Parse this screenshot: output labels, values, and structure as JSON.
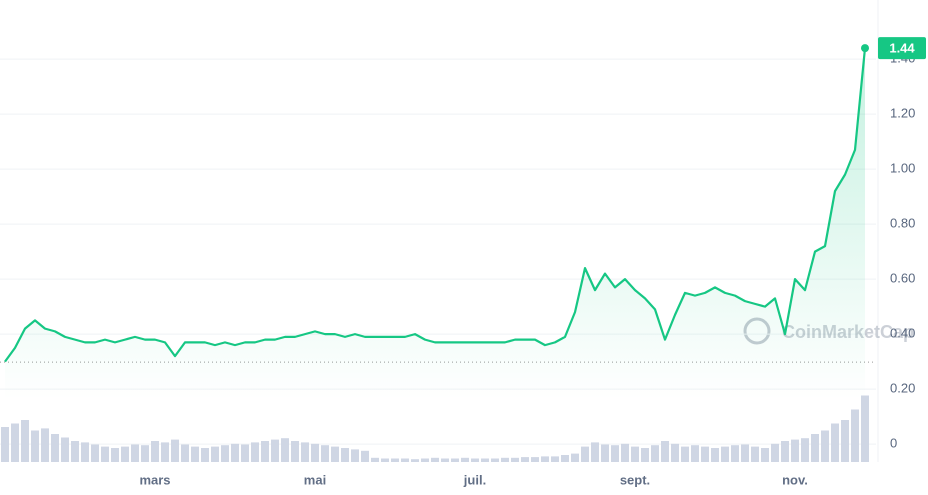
{
  "chart_data": {
    "type": "line",
    "categories": [
      null,
      null,
      null,
      null,
      null,
      null,
      null,
      null,
      null,
      null,
      null,
      null,
      null,
      null,
      null,
      "mars",
      null,
      null,
      null,
      null,
      null,
      null,
      null,
      null,
      null,
      null,
      null,
      null,
      null,
      null,
      null,
      "mai",
      null,
      null,
      null,
      null,
      null,
      null,
      null,
      null,
      null,
      null,
      null,
      null,
      null,
      null,
      null,
      "juil.",
      null,
      null,
      null,
      null,
      null,
      null,
      null,
      null,
      null,
      null,
      null,
      null,
      null,
      null,
      null,
      "sept.",
      null,
      null,
      null,
      null,
      null,
      null,
      null,
      null,
      null,
      null,
      null,
      null,
      null,
      null,
      null,
      "nov.",
      null,
      null,
      null,
      null,
      null,
      null,
      null
    ],
    "series": [
      {
        "color": "#16c784",
        "values": [
          0.3,
          0.35,
          0.42,
          0.45,
          0.42,
          0.41,
          0.39,
          0.38,
          0.37,
          0.37,
          0.38,
          0.37,
          0.38,
          0.39,
          0.38,
          0.38,
          0.37,
          0.32,
          0.37,
          0.37,
          0.37,
          0.36,
          0.37,
          0.36,
          0.37,
          0.37,
          0.38,
          0.38,
          0.39,
          0.39,
          0.4,
          0.41,
          0.4,
          0.4,
          0.39,
          0.4,
          0.39,
          0.39,
          0.39,
          0.39,
          0.39,
          0.4,
          0.38,
          0.37,
          0.37,
          0.37,
          0.37,
          0.37,
          0.37,
          0.37,
          0.37,
          0.38,
          0.38,
          0.38,
          0.36,
          0.37,
          0.39,
          0.48,
          0.64,
          0.56,
          0.62,
          0.57,
          0.6,
          0.56,
          0.53,
          0.49,
          0.38,
          0.47,
          0.55,
          0.54,
          0.55,
          0.57,
          0.55,
          0.54,
          0.52,
          0.51,
          0.5,
          0.53,
          0.4,
          0.6,
          0.56,
          0.7,
          0.72,
          0.92,
          0.98,
          1.07,
          1.44
        ]
      }
    ],
    "down_color": "#ea3943",
    "baseline": 0.298,
    "volume": {
      "color": "#cfd6e4",
      "values": [
        50,
        55,
        60,
        45,
        48,
        40,
        35,
        30,
        28,
        25,
        22,
        20,
        22,
        25,
        24,
        30,
        28,
        32,
        25,
        22,
        20,
        22,
        24,
        26,
        25,
        28,
        30,
        32,
        34,
        30,
        28,
        26,
        24,
        22,
        20,
        18,
        16,
        6,
        5,
        5,
        5,
        4,
        5,
        6,
        5,
        5,
        6,
        5,
        5,
        5,
        6,
        6,
        7,
        7,
        8,
        8,
        10,
        12,
        22,
        28,
        25,
        24,
        26,
        22,
        20,
        24,
        30,
        26,
        22,
        24,
        22,
        20,
        22,
        24,
        25,
        22,
        20,
        26,
        30,
        32,
        34,
        40,
        45,
        55,
        60,
        75,
        95
      ]
    },
    "ylim": [
      -0.065,
      1.615
    ],
    "yticks": [
      0,
      {
        "value": 0.2,
        "label": "0.20"
      },
      {
        "value": 0.4,
        "label": "0.40"
      },
      {
        "value": 0.6,
        "label": "0.60"
      },
      {
        "value": 0.8,
        "label": "0.80"
      },
      {
        "value": 1.0,
        "label": "1.00"
      },
      {
        "value": 1.2,
        "label": "1.20"
      },
      {
        "value": 1.4,
        "label": "1.40"
      }
    ],
    "grid": true,
    "watermark": "CoinMarketCap"
  }
}
